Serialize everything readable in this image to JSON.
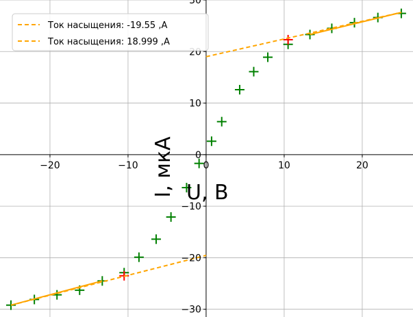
{
  "chart_data": {
    "type": "scatter",
    "xlabel": "U, В",
    "ylabel": "I, мкА",
    "xlim": [
      -26.4,
      26.5
    ],
    "ylim": [
      -31.5,
      30
    ],
    "grid": true,
    "legend_position": "top-left",
    "x_ticks": [
      -20,
      -10,
      0,
      10,
      20
    ],
    "y_ticks": [
      -30,
      -20,
      -10,
      0,
      10,
      20,
      30
    ],
    "series": [
      {
        "marker": "plus",
        "color": "#008000",
        "points": [
          [
            -25.0,
            -29.2
          ],
          [
            -22.0,
            -28.1
          ],
          [
            -19.1,
            -27.2
          ],
          [
            -16.2,
            -26.3
          ],
          [
            -13.3,
            -24.5
          ],
          [
            -10.5,
            -22.9
          ],
          [
            -8.6,
            -19.9
          ],
          [
            -6.4,
            -16.4
          ],
          [
            -4.5,
            -12.1
          ],
          [
            -2.5,
            -6.4
          ],
          [
            -0.9,
            -1.7
          ],
          [
            0.7,
            2.6
          ],
          [
            2.0,
            6.4
          ],
          [
            4.3,
            12.6
          ],
          [
            6.1,
            16.1
          ],
          [
            7.9,
            18.9
          ],
          [
            10.5,
            21.4
          ],
          [
            13.3,
            23.3
          ],
          [
            16.1,
            24.5
          ],
          [
            19.0,
            25.6
          ],
          [
            22.0,
            26.6
          ],
          [
            25.0,
            27.4
          ]
        ]
      },
      {
        "marker": "plus",
        "color": "#ff0000",
        "points": [
          [
            -10.5,
            -23.5
          ],
          [
            10.5,
            22.3
          ]
        ]
      },
      {
        "name": "Ток насыщения: -19.55 ,А",
        "line": "dashed",
        "color": "#ffa500",
        "points": [
          [
            -25.0,
            -29.2
          ],
          [
            0.0,
            -19.55
          ]
        ]
      },
      {
        "name": "Ток насыщения: 18.999 ,А",
        "line": "dashed",
        "color": "#ffa500",
        "points": [
          [
            0.0,
            18.999
          ],
          [
            25.0,
            27.6
          ]
        ]
      },
      {
        "line": "solid",
        "color": "#ffa500",
        "points": [
          [
            -25.0,
            -29.2
          ],
          [
            -13.3,
            -24.5
          ]
        ]
      },
      {
        "line": "solid",
        "color": "#ffa500",
        "points": [
          [
            13.3,
            23.3
          ],
          [
            25.0,
            27.6
          ]
        ]
      }
    ]
  }
}
